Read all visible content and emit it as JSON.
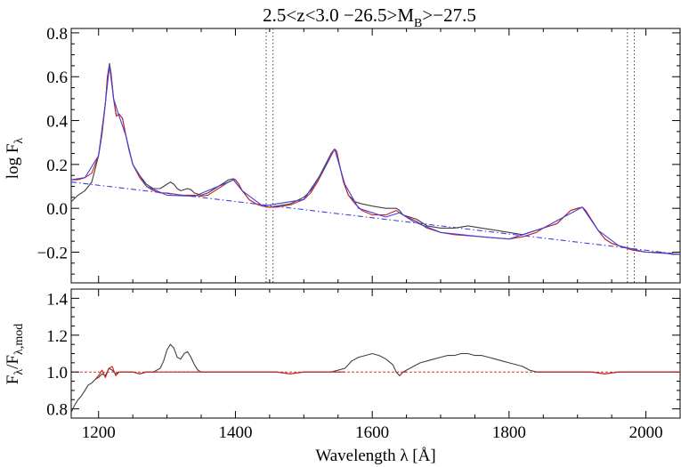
{
  "chart_data": [
    {
      "type": "line",
      "panel": "top",
      "title": "2.5<z<3.0 −26.5>M",
      "title_sub": "B",
      "title_tail": ">−27.5",
      "ylabel": "log F",
      "ylabel_sub": "λ",
      "xlim": [
        1160,
        2050
      ],
      "ylim": [
        -0.34,
        0.82
      ],
      "x_ticks": [
        1200,
        1400,
        1600,
        1800,
        2000
      ],
      "y_ticks": [
        -0.2,
        0.0,
        0.2,
        0.4,
        0.6,
        0.8
      ],
      "y_tick_labels": [
        "−0.2",
        "0.0",
        "0.2",
        "0.4",
        "0.6",
        "0.8"
      ],
      "vertical_dotted_lines": [
        1445,
        1455,
        1973,
        1983
      ],
      "series": [
        {
          "role": "observed composite spectrum",
          "color": "#404040",
          "x": [
            1160,
            1170,
            1180,
            1190,
            1200,
            1205,
            1210,
            1213,
            1216,
            1218,
            1222,
            1226,
            1230,
            1235,
            1240,
            1245,
            1250,
            1260,
            1270,
            1280,
            1290,
            1300,
            1305,
            1310,
            1315,
            1320,
            1330,
            1335,
            1340,
            1350,
            1360,
            1370,
            1380,
            1390,
            1397,
            1400,
            1405,
            1410,
            1420,
            1430,
            1440,
            1450,
            1460,
            1480,
            1500,
            1510,
            1520,
            1530,
            1540,
            1545,
            1548,
            1552,
            1558,
            1565,
            1575,
            1585,
            1600,
            1620,
            1635,
            1640,
            1645,
            1655,
            1665,
            1680,
            1700,
            1720,
            1740,
            1760,
            1780,
            1800,
            1820,
            1840,
            1850,
            1860,
            1870,
            1880,
            1890,
            1900,
            1907,
            1912,
            1920,
            1930,
            1940,
            1950,
            1960,
            1980,
            2000,
            2020,
            2040,
            2050
          ],
          "y": [
            0.03,
            0.06,
            0.08,
            0.12,
            0.24,
            0.34,
            0.48,
            0.6,
            0.66,
            0.62,
            0.5,
            0.42,
            0.43,
            0.41,
            0.33,
            0.26,
            0.2,
            0.15,
            0.11,
            0.09,
            0.09,
            0.11,
            0.12,
            0.11,
            0.09,
            0.08,
            0.09,
            0.085,
            0.07,
            0.06,
            0.07,
            0.09,
            0.11,
            0.13,
            0.135,
            0.13,
            0.11,
            0.08,
            0.04,
            0.02,
            0.01,
            0.005,
            0.01,
            0.02,
            0.05,
            0.08,
            0.13,
            0.19,
            0.25,
            0.27,
            0.26,
            0.2,
            0.12,
            0.06,
            0.03,
            0.02,
            0.01,
            0.0,
            0.0,
            -0.01,
            -0.03,
            -0.04,
            -0.05,
            -0.08,
            -0.09,
            -0.09,
            -0.08,
            -0.09,
            -0.1,
            -0.11,
            -0.12,
            -0.1,
            -0.09,
            -0.08,
            -0.07,
            -0.04,
            -0.01,
            0.0,
            0.005,
            -0.01,
            -0.05,
            -0.1,
            -0.14,
            -0.16,
            -0.17,
            -0.19,
            -0.2,
            -0.2,
            -0.21,
            -0.21
          ]
        },
        {
          "role": "model fit",
          "color": "#cc2222",
          "x": [
            1160,
            1170,
            1180,
            1190,
            1200,
            1205,
            1210,
            1213,
            1216,
            1218,
            1222,
            1226,
            1230,
            1235,
            1240,
            1245,
            1250,
            1260,
            1270,
            1280,
            1290,
            1300,
            1310,
            1320,
            1330,
            1340,
            1350,
            1360,
            1370,
            1380,
            1390,
            1397,
            1400,
            1405,
            1410,
            1420,
            1430,
            1440,
            1450,
            1460,
            1480,
            1500,
            1510,
            1520,
            1530,
            1540,
            1545,
            1548,
            1552,
            1558,
            1565,
            1575,
            1585,
            1600,
            1620,
            1635,
            1640,
            1645,
            1655,
            1665,
            1680,
            1700,
            1720,
            1740,
            1760,
            1780,
            1800,
            1820,
            1840,
            1850,
            1860,
            1870,
            1880,
            1890,
            1900,
            1907,
            1912,
            1920,
            1930,
            1940,
            1950,
            1960,
            1980,
            2000,
            2020,
            2040,
            2050
          ],
          "y": [
            0.13,
            0.13,
            0.14,
            0.16,
            0.24,
            0.34,
            0.48,
            0.6,
            0.65,
            0.62,
            0.5,
            0.42,
            0.43,
            0.41,
            0.33,
            0.26,
            0.2,
            0.14,
            0.1,
            0.08,
            0.07,
            0.07,
            0.065,
            0.06,
            0.06,
            0.06,
            0.055,
            0.06,
            0.08,
            0.1,
            0.12,
            0.13,
            0.13,
            0.11,
            0.08,
            0.04,
            0.02,
            0.01,
            0.005,
            0.005,
            0.015,
            0.04,
            0.07,
            0.12,
            0.18,
            0.25,
            0.27,
            0.26,
            0.2,
            0.12,
            0.06,
            0.02,
            -0.01,
            -0.03,
            -0.03,
            -0.01,
            -0.02,
            -0.03,
            -0.045,
            -0.06,
            -0.09,
            -0.11,
            -0.12,
            -0.125,
            -0.13,
            -0.135,
            -0.14,
            -0.13,
            -0.11,
            -0.09,
            -0.08,
            -0.07,
            -0.04,
            -0.01,
            0.0,
            0.005,
            -0.01,
            -0.05,
            -0.1,
            -0.14,
            -0.16,
            -0.17,
            -0.19,
            -0.2,
            -0.2,
            -0.21,
            -0.21
          ]
        },
        {
          "role": "emission line components",
          "color": "#4040dd",
          "x": [
            1160,
            1180,
            1200,
            1210,
            1216,
            1222,
            1230,
            1240,
            1250,
            1270,
            1300,
            1340,
            1390,
            1397,
            1410,
            1440,
            1500,
            1530,
            1545,
            1560,
            1580,
            1620,
            1640,
            1660,
            1700,
            1760,
            1800,
            1850,
            1880,
            1907,
            1930,
            1960,
            2000,
            2050
          ],
          "y": [
            0.13,
            0.14,
            0.24,
            0.48,
            0.65,
            0.5,
            0.42,
            0.33,
            0.2,
            0.1,
            0.06,
            0.055,
            0.12,
            0.13,
            0.08,
            0.01,
            0.04,
            0.18,
            0.27,
            0.11,
            0.0,
            -0.04,
            -0.02,
            -0.06,
            -0.11,
            -0.13,
            -0.14,
            -0.09,
            -0.04,
            0.005,
            -0.1,
            -0.17,
            -0.2,
            -0.21
          ]
        },
        {
          "role": "power-law continuum",
          "color": "#4040dd",
          "dashed": true,
          "x": [
            1160,
            2050
          ],
          "y": [
            0.12,
            -0.21
          ]
        }
      ]
    },
    {
      "type": "line",
      "panel": "bottom",
      "xlabel": "Wavelength λ [Å]",
      "ylabel": "F",
      "ylabel_sub": "λ",
      "ylabel_mid": "/F",
      "ylabel_sub2": "λ,mod",
      "xlim": [
        1160,
        2050
      ],
      "ylim": [
        0.75,
        1.45
      ],
      "x_ticks": [
        1200,
        1400,
        1600,
        1800,
        2000
      ],
      "x_tick_labels": [
        "1200",
        "1400",
        "1600",
        "1800",
        "2000"
      ],
      "y_ticks": [
        0.8,
        1.0,
        1.2,
        1.4
      ],
      "y_tick_labels": [
        "0.8",
        "1.0",
        "1.2",
        "1.4"
      ],
      "reference_value": 1.0,
      "series": [
        {
          "role": "observed / model ratio",
          "color": "#404040",
          "x": [
            1160,
            1165,
            1170,
            1175,
            1180,
            1185,
            1190,
            1195,
            1200,
            1205,
            1210,
            1215,
            1220,
            1225,
            1230,
            1240,
            1250,
            1260,
            1270,
            1280,
            1290,
            1295,
            1300,
            1305,
            1310,
            1315,
            1320,
            1325,
            1330,
            1335,
            1340,
            1345,
            1350,
            1360,
            1380,
            1400,
            1420,
            1440,
            1460,
            1480,
            1500,
            1520,
            1540,
            1560,
            1570,
            1580,
            1590,
            1600,
            1610,
            1620,
            1630,
            1635,
            1640,
            1645,
            1650,
            1660,
            1670,
            1680,
            1690,
            1700,
            1710,
            1720,
            1730,
            1740,
            1750,
            1760,
            1770,
            1780,
            1790,
            1800,
            1810,
            1820,
            1830,
            1840,
            1850,
            1860,
            1880,
            1900,
            1920,
            1940,
            1960,
            1980,
            2000,
            2020,
            2040,
            2050
          ],
          "y": [
            0.78,
            0.82,
            0.85,
            0.87,
            0.9,
            0.93,
            0.94,
            0.96,
            0.97,
            0.99,
            0.98,
            1.02,
            1.01,
            0.99,
            1.0,
            1.0,
            1.0,
            0.99,
            1.0,
            1.0,
            1.02,
            1.06,
            1.12,
            1.15,
            1.13,
            1.08,
            1.07,
            1.1,
            1.11,
            1.08,
            1.04,
            1.01,
            1.0,
            1.0,
            1.0,
            1.0,
            1.0,
            1.0,
            1.0,
            0.99,
            1.0,
            1.0,
            1.0,
            1.02,
            1.06,
            1.08,
            1.09,
            1.1,
            1.09,
            1.07,
            1.04,
            1.0,
            0.98,
            1.0,
            1.01,
            1.03,
            1.05,
            1.06,
            1.07,
            1.08,
            1.09,
            1.09,
            1.1,
            1.1,
            1.09,
            1.09,
            1.08,
            1.07,
            1.06,
            1.05,
            1.04,
            1.03,
            1.01,
            1.0,
            1.0,
            1.0,
            1.0,
            1.0,
            1.0,
            0.99,
            1.0,
            1.0,
            1.0,
            1.0,
            1.0,
            1.0
          ]
        },
        {
          "role": "fitted region ratio",
          "color": "#cc2222",
          "x": [
            1195,
            1200,
            1205,
            1210,
            1215,
            1220,
            1225,
            1230,
            1240,
            1250,
            1260,
            1270,
            1280,
            1290,
            1300,
            1340,
            1350,
            1360,
            1380,
            1400,
            1420,
            1440,
            1460,
            1480,
            1500,
            1520,
            1540,
            1560
          ],
          "y": [
            0.96,
            0.98,
            1.01,
            0.97,
            1.02,
            1.03,
            0.98,
            1.0,
            1.0,
            1.0,
            0.99,
            1.0,
            1.0,
            1.0,
            1.0,
            1.0,
            1.0,
            1.0,
            1.0,
            1.0,
            1.0,
            1.0,
            1.0,
            0.99,
            1.0,
            1.0,
            1.0,
            1.0
          ]
        },
        {
          "role": "fitted region ratio",
          "color": "#cc2222",
          "x": [
            1640,
            1645,
            1650
          ],
          "y": [
            0.98,
            1.0,
            1.0
          ]
        },
        {
          "role": "fitted region ratio",
          "color": "#cc2222",
          "x": [
            1840,
            1850,
            1860,
            1880,
            1900,
            1920,
            1940,
            1960,
            1980,
            2000,
            2020,
            2040,
            2050
          ],
          "y": [
            1.0,
            1.0,
            1.0,
            1.0,
            1.0,
            1.0,
            0.99,
            1.0,
            1.0,
            1.0,
            1.0,
            1.0,
            1.0
          ]
        }
      ]
    }
  ]
}
